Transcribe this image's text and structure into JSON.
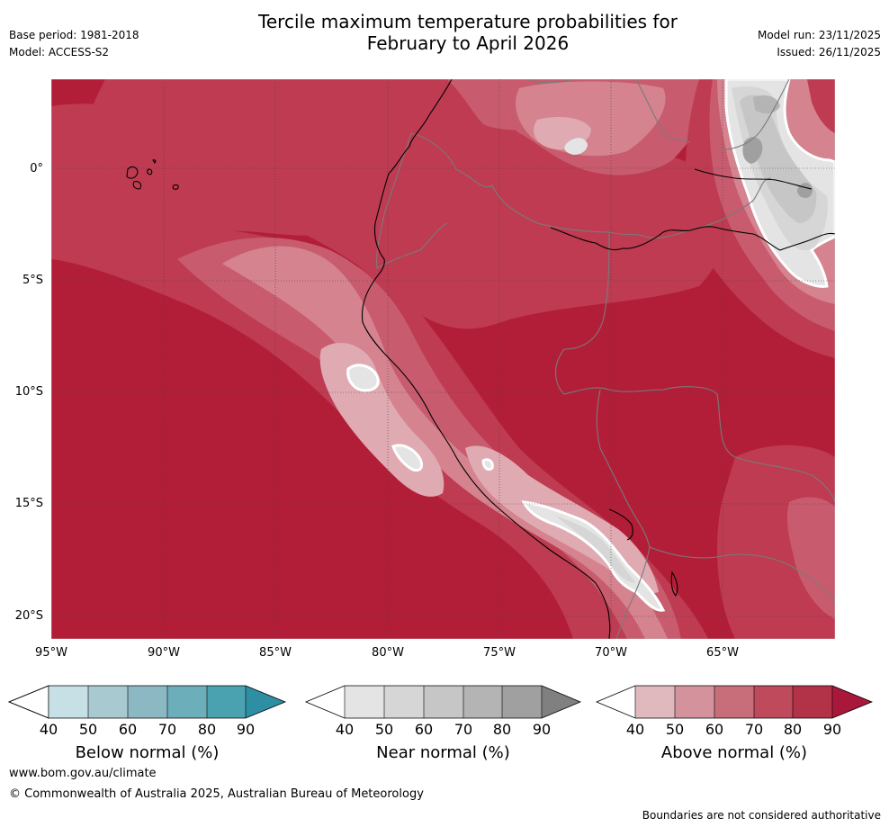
{
  "header": {
    "title_line1": "Tercile maximum temperature probabilities for",
    "title_line2": "February to April 2026",
    "base_period": "Base period: 1981-2018",
    "model": "Model: ACCESS-S2",
    "model_run": "Model run: 23/11/2025",
    "issued": "Issued: 26/11/2025"
  },
  "map": {
    "lat_labels": [
      "0°",
      "5°S",
      "10°S",
      "15°S",
      "20°S"
    ],
    "lon_labels": [
      "95°W",
      "90°W",
      "85°W",
      "80°W",
      "75°W",
      "70°W",
      "65°W"
    ],
    "colors": {
      "above_90": "#b21e38",
      "above_80": "#be3b52",
      "above_70": "#c85c6e",
      "above_60": "#d4838f",
      "above_50": "#e0aab2",
      "near_80": "#a0a0a0",
      "near_70": "#b4b4b4",
      "near_60": "#c6c6c6",
      "near_50": "#d6d6d6",
      "near_40": "#e4e4e4"
    }
  },
  "colorbars": [
    {
      "label": "Below normal (%)",
      "ticks": [
        "40",
        "50",
        "60",
        "70",
        "80",
        "90"
      ],
      "colors": [
        "#ffffff",
        "#c7e0e5",
        "#a8c9d0",
        "#8bb8c3",
        "#6caeb9",
        "#4aa2b1",
        "#2e8ea3"
      ]
    },
    {
      "label": "Near normal (%)",
      "ticks": [
        "40",
        "50",
        "60",
        "70",
        "80",
        "90"
      ],
      "colors": [
        "#ffffff",
        "#e4e4e4",
        "#d6d6d6",
        "#c6c6c6",
        "#b4b4b4",
        "#a0a0a0",
        "#808080"
      ]
    },
    {
      "label": "Above normal (%)",
      "ticks": [
        "40",
        "50",
        "60",
        "70",
        "80",
        "90"
      ],
      "colors": [
        "#ffffff",
        "#e0b9bf",
        "#d4939c",
        "#c86e7b",
        "#be4a5c",
        "#b23248",
        "#a9183a"
      ]
    }
  ],
  "footer": {
    "url": "www.bom.gov.au/climate",
    "copyright": "© Commonwealth of Australia 2025, Australian Bureau of Meteorology",
    "disclaimer": "Boundaries are not considered authoritative"
  }
}
